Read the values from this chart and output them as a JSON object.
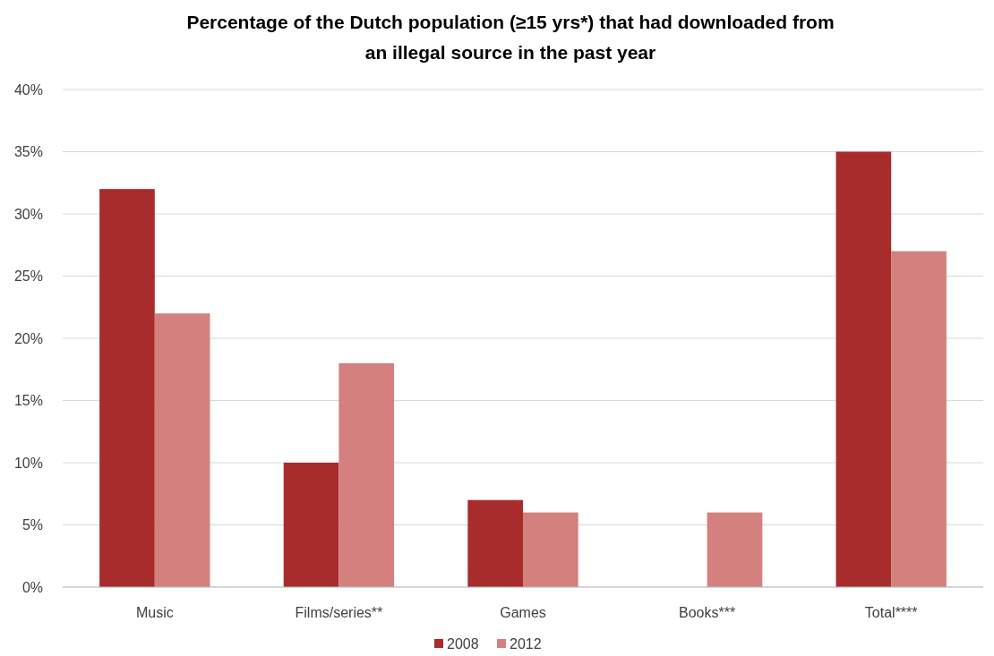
{
  "chart_data": {
    "type": "bar",
    "title": "Percentage of the Dutch population (≥15 yrs*) that had downloaded from an illegal source in the past year",
    "categories": [
      "Music",
      "Films/series**",
      "Games",
      "Books***",
      "Total****"
    ],
    "series": [
      {
        "name": "2008",
        "color": "#a82c2c",
        "values": [
          32,
          10,
          7,
          null,
          35
        ]
      },
      {
        "name": "2012",
        "color": "#d4807e",
        "values": [
          22,
          18,
          6,
          6,
          27
        ]
      }
    ],
    "ylim": [
      0,
      40
    ],
    "yticks": [
      {
        "value": 0,
        "label": "0%"
      },
      {
        "value": 5,
        "label": "5%"
      },
      {
        "value": 10,
        "label": "10%"
      },
      {
        "value": 15,
        "label": "15%"
      },
      {
        "value": 20,
        "label": "20%"
      },
      {
        "value": 25,
        "label": "25%"
      },
      {
        "value": 30,
        "label": "30%"
      },
      {
        "value": 35,
        "label": "35%"
      },
      {
        "value": 40,
        "label": "40%"
      }
    ],
    "grid": "y",
    "legend": "bottom"
  }
}
